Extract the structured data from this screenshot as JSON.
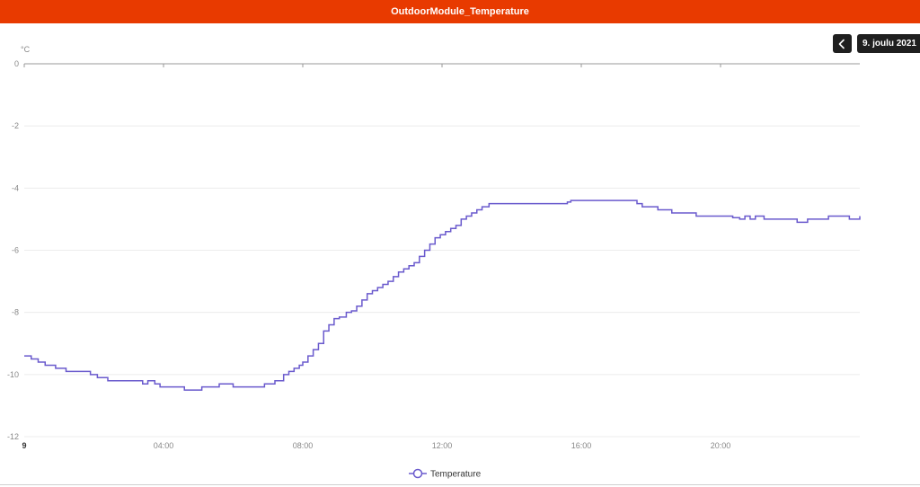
{
  "header": {
    "title": "OutdoorModule_Temperature",
    "background": "#e83a00"
  },
  "controls": {
    "back_icon": "chevron-left-icon",
    "date_label": "9. joulu 2021"
  },
  "chart_data": {
    "type": "line",
    "title": "",
    "xlabel": "",
    "ylabel": "°C",
    "xlim": [
      0,
      24
    ],
    "ylim": [
      -12,
      0
    ],
    "x_ticks": [
      {
        "value": 0,
        "label": "9",
        "bold": true
      },
      {
        "value": 4,
        "label": "04:00"
      },
      {
        "value": 8,
        "label": "08:00"
      },
      {
        "value": 12,
        "label": "12:00"
      },
      {
        "value": 16,
        "label": "16:00"
      },
      {
        "value": 20,
        "label": "20:00"
      }
    ],
    "y_ticks": [
      0,
      -2,
      -4,
      -6,
      -8,
      -10,
      -12
    ],
    "grid": true,
    "step": true,
    "legend": {
      "position": "bottom-center",
      "color": "#6a5acd"
    },
    "series": [
      {
        "name": "Temperature",
        "color": "#6a5acd",
        "points": [
          [
            0.0,
            -9.4
          ],
          [
            0.2,
            -9.5
          ],
          [
            0.4,
            -9.6
          ],
          [
            0.6,
            -9.7
          ],
          [
            0.9,
            -9.8
          ],
          [
            1.2,
            -9.9
          ],
          [
            1.9,
            -10.0
          ],
          [
            2.1,
            -10.1
          ],
          [
            2.4,
            -10.2
          ],
          [
            3.4,
            -10.3
          ],
          [
            3.55,
            -10.2
          ],
          [
            3.75,
            -10.3
          ],
          [
            3.9,
            -10.4
          ],
          [
            4.6,
            -10.5
          ],
          [
            5.1,
            -10.4
          ],
          [
            5.6,
            -10.3
          ],
          [
            6.0,
            -10.4
          ],
          [
            6.9,
            -10.3
          ],
          [
            7.2,
            -10.2
          ],
          [
            7.45,
            -10.0
          ],
          [
            7.6,
            -9.9
          ],
          [
            7.75,
            -9.8
          ],
          [
            7.9,
            -9.7
          ],
          [
            8.0,
            -9.6
          ],
          [
            8.15,
            -9.4
          ],
          [
            8.3,
            -9.2
          ],
          [
            8.45,
            -9.0
          ],
          [
            8.6,
            -8.6
          ],
          [
            8.75,
            -8.4
          ],
          [
            8.9,
            -8.2
          ],
          [
            9.05,
            -8.15
          ],
          [
            9.25,
            -8.0
          ],
          [
            9.4,
            -7.95
          ],
          [
            9.55,
            -7.8
          ],
          [
            9.7,
            -7.6
          ],
          [
            9.85,
            -7.4
          ],
          [
            10.0,
            -7.3
          ],
          [
            10.15,
            -7.2
          ],
          [
            10.3,
            -7.1
          ],
          [
            10.45,
            -7.0
          ],
          [
            10.6,
            -6.85
          ],
          [
            10.75,
            -6.7
          ],
          [
            10.9,
            -6.6
          ],
          [
            11.05,
            -6.5
          ],
          [
            11.2,
            -6.4
          ],
          [
            11.35,
            -6.2
          ],
          [
            11.5,
            -6.0
          ],
          [
            11.65,
            -5.8
          ],
          [
            11.8,
            -5.6
          ],
          [
            11.95,
            -5.5
          ],
          [
            12.1,
            -5.4
          ],
          [
            12.25,
            -5.3
          ],
          [
            12.4,
            -5.2
          ],
          [
            12.55,
            -5.0
          ],
          [
            12.7,
            -4.9
          ],
          [
            12.85,
            -4.8
          ],
          [
            13.0,
            -4.7
          ],
          [
            13.15,
            -4.6
          ],
          [
            13.35,
            -4.5
          ],
          [
            15.6,
            -4.45
          ],
          [
            15.7,
            -4.4
          ],
          [
            17.6,
            -4.5
          ],
          [
            17.75,
            -4.6
          ],
          [
            18.2,
            -4.7
          ],
          [
            18.6,
            -4.8
          ],
          [
            19.3,
            -4.9
          ],
          [
            20.35,
            -4.95
          ],
          [
            20.55,
            -5.0
          ],
          [
            20.7,
            -4.9
          ],
          [
            20.85,
            -5.0
          ],
          [
            21.0,
            -4.9
          ],
          [
            21.25,
            -5.0
          ],
          [
            21.9,
            -5.0
          ],
          [
            22.2,
            -5.1
          ],
          [
            22.5,
            -5.0
          ],
          [
            23.1,
            -4.9
          ],
          [
            23.7,
            -5.0
          ],
          [
            24.0,
            -4.9
          ]
        ]
      }
    ]
  }
}
